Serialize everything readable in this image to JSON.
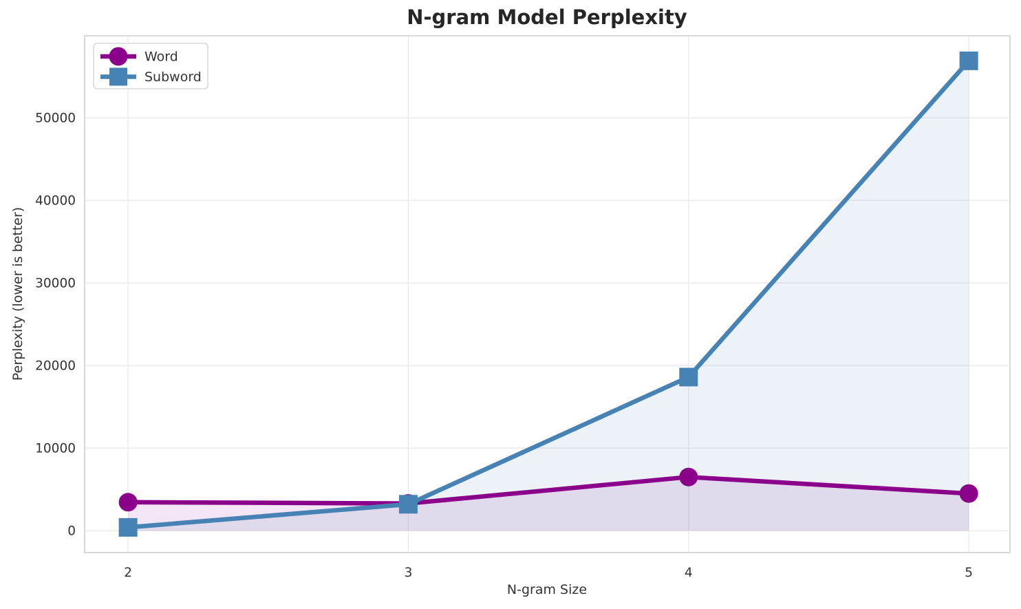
{
  "chart_data": {
    "type": "line",
    "title": "N-gram Model Perplexity",
    "xlabel": "N-gram Size",
    "ylabel": "Perplexity (lower is better)",
    "x": [
      2,
      3,
      4,
      5
    ],
    "xticks": [
      2,
      3,
      4,
      5
    ],
    "yticks": [
      0,
      10000,
      20000,
      30000,
      40000,
      50000
    ],
    "xlim": [
      1.845,
      5.147
    ],
    "ylim": [
      -2650,
      59930
    ],
    "grid": true,
    "legend_position": "upper-left",
    "fill_to_zero": true,
    "fill_alpha": 0.1,
    "series": [
      {
        "name": "Word",
        "color": "#8B008B",
        "marker": "circle",
        "values": [
          3450,
          3300,
          6500,
          4500
        ]
      },
      {
        "name": "Subword",
        "color": "#4682B4",
        "marker": "square",
        "values": [
          400,
          3200,
          18600,
          56900
        ]
      }
    ]
  },
  "palette": {
    "background": "#ffffff",
    "grid": "#e9e9e9",
    "spine": "#d9d9d9",
    "tick_text": "#333333",
    "title_text": "#262626",
    "legend_border": "#d2d2d2",
    "legend_fill": "rgba(255,255,255,0.92)"
  }
}
